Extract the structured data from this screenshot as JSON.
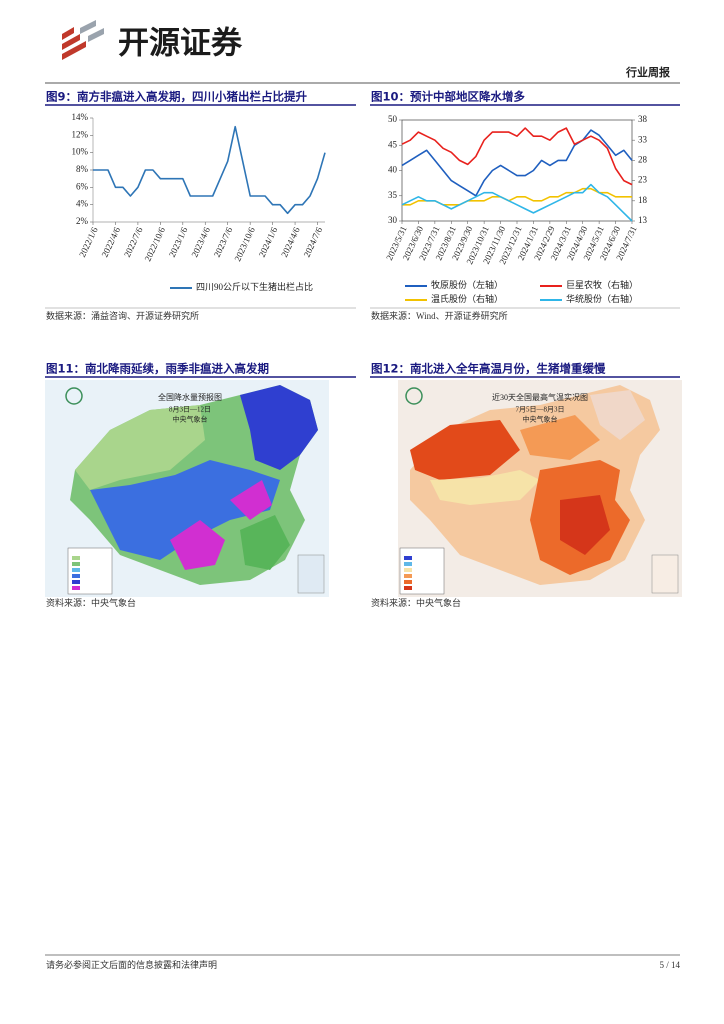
{
  "header": {
    "brand": "开源证券",
    "report_type": "行业周报"
  },
  "figures": [
    {
      "title": "图9：南方非瘟进入高发期，四川小猪出栏占比提升",
      "source": "数据来源：涌益咨询、开源证券研究所"
    },
    {
      "title": "图10：预计中部地区降水增多",
      "source": "数据来源：Wind、开源证券研究所"
    },
    {
      "title": "图11：南北降雨延续，雨季非瘟进入高发期",
      "source": "资料来源：中央气象台",
      "map": {
        "title": "全国降水量预报图",
        "date": "8月3日—12日",
        "issuer": "中央气象台"
      }
    },
    {
      "title": "图12：南北进入全年高温月份，生猪增重缓慢",
      "source": "资料来源：中央气象台",
      "map": {
        "title": "近30天全国最高气温实况图",
        "date": "7月5日—8月3日",
        "issuer": "中央气象台"
      }
    }
  ],
  "chart_data": [
    {
      "type": "line",
      "categories": [
        "2022/1/6",
        null,
        null,
        "2022/4/6",
        null,
        null,
        "2022/7/6",
        null,
        null,
        "2022/10/6",
        null,
        null,
        "2023/1/6",
        null,
        null,
        "2023/4/6",
        null,
        null,
        "2023/7/6",
        null,
        null,
        "2023/10/6",
        null,
        null,
        "2024/1/6",
        null,
        null,
        "2024/4/6",
        null,
        null,
        "2024/7/6",
        null
      ],
      "series": [
        {
          "name": "四川90公斤以下生猪出栏占比",
          "color": "#2e75b6",
          "values": [
            8,
            8,
            8,
            6,
            6,
            5,
            6,
            8,
            8,
            7,
            7,
            7,
            7,
            5,
            5,
            5,
            5,
            7,
            9,
            13,
            9,
            5,
            5,
            5,
            4,
            4,
            3,
            4,
            4,
            5,
            7,
            10
          ]
        }
      ],
      "ylim": [
        2,
        14
      ],
      "yticks": [
        {
          "value": 2,
          "label": "2%"
        },
        {
          "value": 4,
          "label": "4%"
        },
        {
          "value": 6,
          "label": "6%"
        },
        {
          "value": 8,
          "label": "8%"
        },
        {
          "value": 10,
          "label": "10%"
        },
        {
          "value": 12,
          "label": "12%"
        },
        {
          "value": 14,
          "label": "14%"
        }
      ],
      "grid": false,
      "legend": "bottom"
    },
    {
      "type": "line",
      "categories": [
        "2023/5/31",
        null,
        "2023/6/30",
        null,
        "2023/7/31",
        null,
        "2023/8/31",
        null,
        "2023/9/30",
        null,
        "2023/10/31",
        null,
        "2023/11/30",
        null,
        "2023/12/31",
        null,
        "2024/1/31",
        null,
        "2024/2/29",
        null,
        "2024/3/31",
        null,
        "2024/4/30",
        null,
        "2024/5/31",
        null,
        "2024/6/30",
        null,
        "2024/7/31"
      ],
      "series": [
        {
          "name": "牧原股份（左轴）",
          "color": "#1f5fbf",
          "values": [
            41,
            42,
            43,
            44,
            42,
            40,
            38,
            37,
            36,
            35,
            38,
            40,
            41,
            40,
            39,
            39,
            40,
            42,
            41,
            42,
            42,
            45,
            46,
            48,
            47,
            45,
            43,
            44,
            42
          ]
        },
        {
          "name": "巨星农牧（右轴）",
          "color": "#e8211d",
          "axis": "y2",
          "values": [
            32,
            33,
            35,
            34,
            33,
            31,
            30,
            28,
            27,
            29,
            33,
            35,
            35,
            35,
            34,
            36,
            34,
            34,
            33,
            35,
            36,
            32,
            33,
            34,
            33,
            31,
            26,
            23,
            22
          ]
        },
        {
          "name": "温氏股份（右轴）",
          "color": "#f2c200",
          "axis": "y2",
          "values": [
            17,
            17,
            18,
            18,
            18,
            17,
            17,
            17,
            18,
            18,
            18,
            19,
            19,
            18,
            19,
            19,
            18,
            18,
            19,
            19,
            20,
            20,
            21,
            21,
            20,
            20,
            19,
            19,
            19
          ]
        },
        {
          "name": "华统股份（右轴）",
          "color": "#2fb6e8",
          "axis": "y2",
          "values": [
            17,
            18,
            19,
            18,
            18,
            17,
            16,
            17,
            18,
            19,
            20,
            20,
            19,
            18,
            17,
            16,
            15,
            16,
            17,
            18,
            19,
            20,
            20,
            22,
            20,
            19,
            17,
            15,
            13
          ]
        }
      ],
      "ylim": [
        30,
        50
      ],
      "yticks": [
        30,
        35,
        40,
        45,
        50
      ],
      "y2lim": [
        13,
        38
      ],
      "y2ticks": [
        13,
        18,
        23,
        28,
        33,
        38
      ],
      "grid": false,
      "legend": "bottom"
    }
  ],
  "footer": {
    "disclaimer": "请务必参阅正文后面的信息披露和法律声明",
    "page": "5 / 14"
  }
}
